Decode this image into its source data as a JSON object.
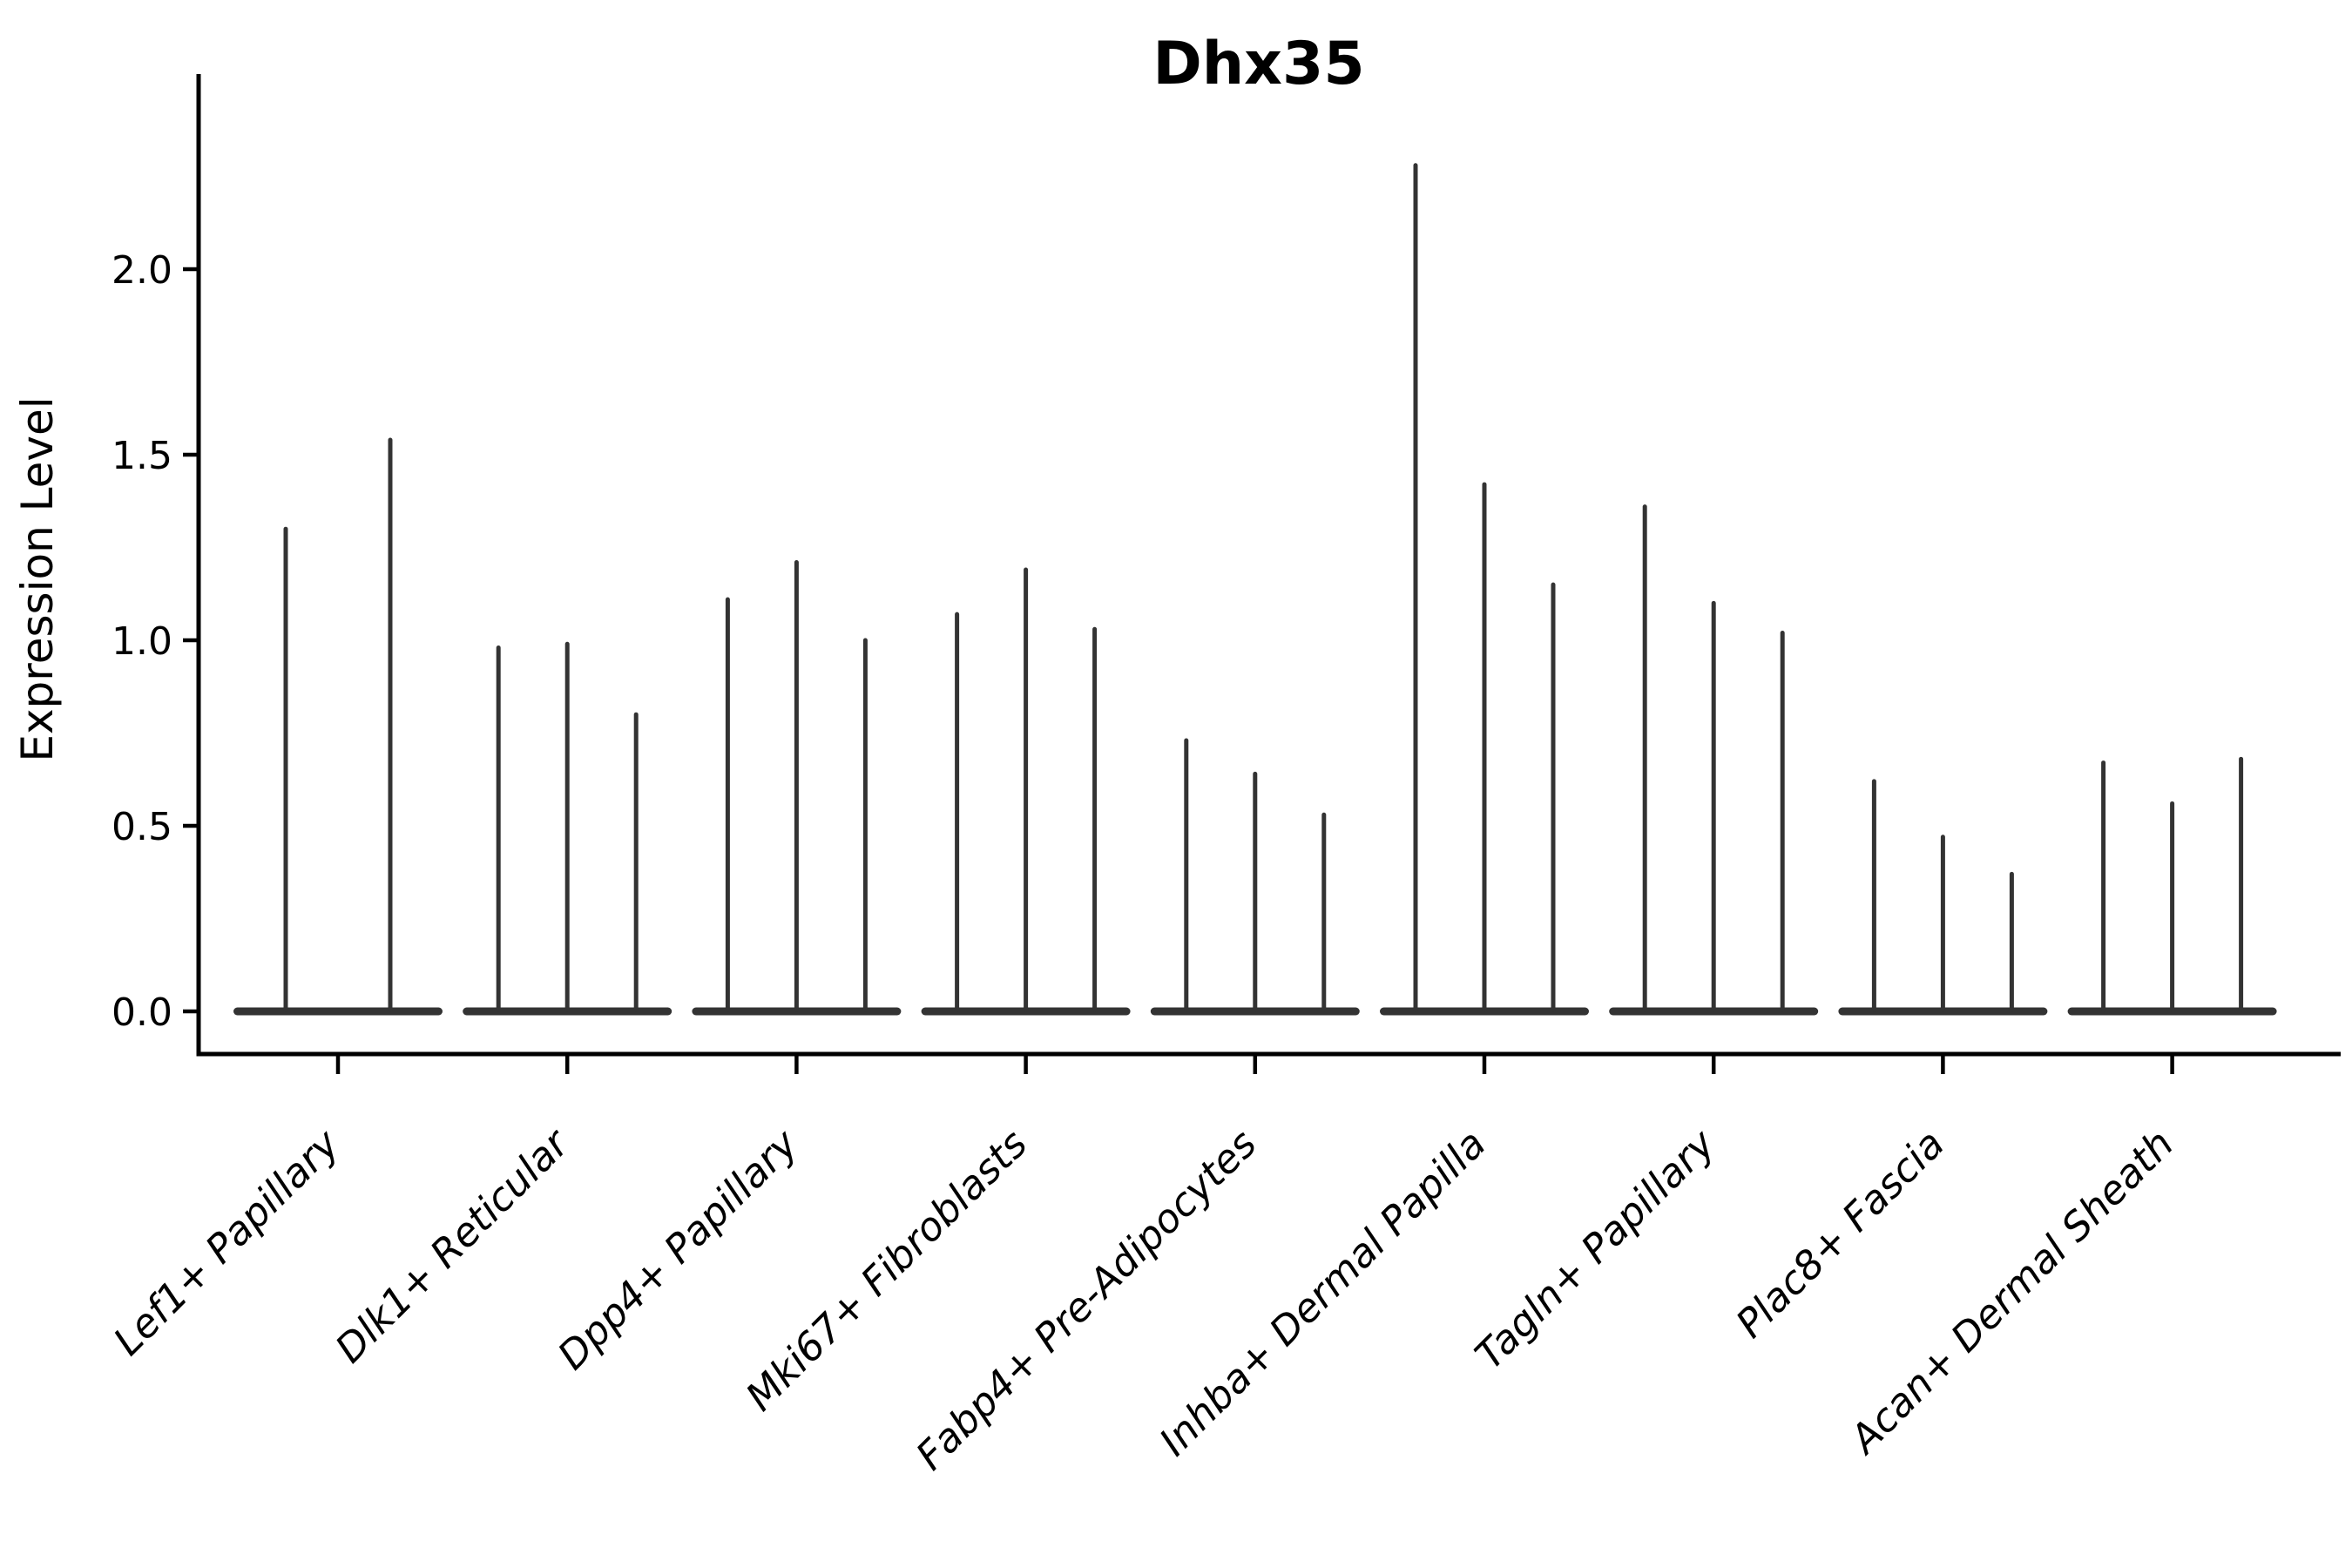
{
  "chart_data": {
    "type": "violin",
    "title": "Dhx35",
    "xlabel": "",
    "ylabel": "Expression Level",
    "yticks": [
      0.0,
      0.5,
      1.0,
      1.5,
      2.0
    ],
    "ylim": [
      -0.12,
      2.53
    ],
    "grid": false,
    "legend": "none",
    "categories": [
      "Lef1+ Papillary",
      "Dlk1+ Reticular",
      "Dpp4+ Papillary",
      "Mki67+ Fibroblasts",
      "Fabp4+ Pre-Adipocytes",
      "Inhba+ Dermal Papilla",
      "Tagln+ Papillary",
      "Plac8+ Fascia",
      "Acan+ Dermal Sheath"
    ],
    "series_description": "Each category shows thin spike-shaped violins (one per sample); values are the peak expression level (spike top) of each violin, left to right. All violins have a wide flat base at 0.",
    "values": [
      [
        1.3,
        1.54
      ],
      [
        0.98,
        0.99,
        0.8
      ],
      [
        1.11,
        1.21,
        1.0
      ],
      [
        1.07,
        1.19,
        1.03
      ],
      [
        0.73,
        0.64,
        0.53
      ],
      [
        2.28,
        1.42,
        1.15
      ],
      [
        1.36,
        1.1,
        1.02
      ],
      [
        0.62,
        0.47,
        0.37
      ],
      [
        0.67,
        0.56,
        0.68
      ]
    ],
    "colors": {
      "violin": "#333333",
      "axis": "#000000",
      "background": "#ffffff"
    }
  }
}
